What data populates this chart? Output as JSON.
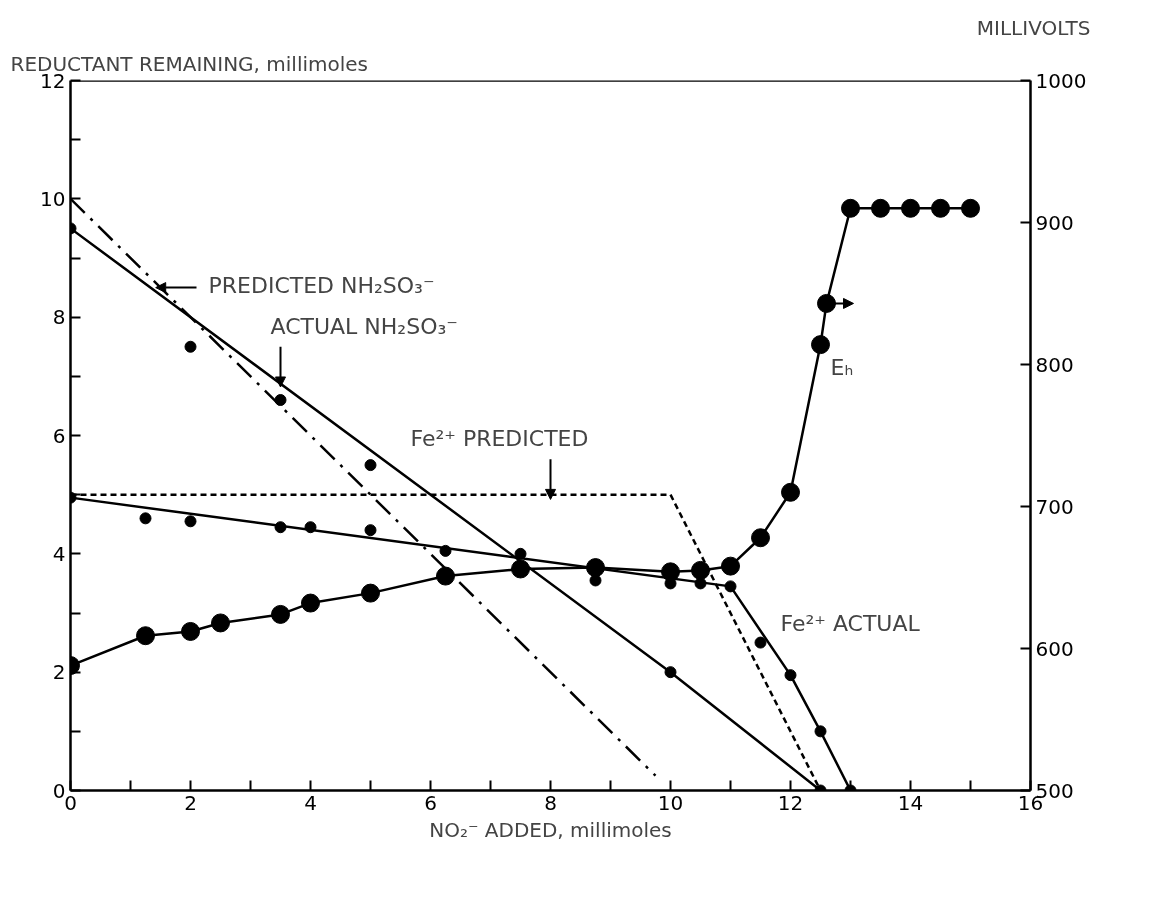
{
  "chart_data": {
    "type": "line",
    "xlabel": "NO₂⁻ ADDED, millimoles",
    "ylabel": "REDUCTANT REMAINING, millimoles",
    "y2label": "MILLIVOLTS",
    "xlim": [
      0,
      16
    ],
    "xticks": [
      0,
      {
        "value": 1,
        "label": null
      },
      2,
      {
        "value": 3,
        "label": null
      },
      4,
      {
        "value": 5,
        "label": null
      },
      6,
      {
        "value": 7,
        "label": null
      },
      8,
      {
        "value": 9,
        "label": null
      },
      10,
      {
        "value": 11,
        "label": null
      },
      12,
      {
        "value": 13,
        "label": null
      },
      14,
      {
        "value": 15,
        "label": null
      },
      16
    ],
    "ylim": [
      0,
      12
    ],
    "yticks": [
      0,
      {
        "value": 1,
        "label": null
      },
      2,
      {
        "value": 3,
        "label": null
      },
      4,
      {
        "value": 5,
        "label": null
      },
      6,
      {
        "value": 7,
        "label": null
      },
      8,
      {
        "value": 9,
        "label": null
      },
      10,
      {
        "value": 11,
        "label": null
      },
      12
    ],
    "y2lim": [
      500,
      1000
    ],
    "y2ticks": [
      500,
      600,
      700,
      800,
      900,
      1000
    ],
    "grid": false,
    "series": [
      {
        "line_style": "dashed",
        "color": "#000000",
        "x": [
          0,
          9.75
        ],
        "values": [
          10,
          0.25
        ]
      },
      {
        "type": "scatter",
        "marker": "circle",
        "color": "#000000",
        "x": [
          0,
          2,
          3.5,
          5,
          7.5,
          10,
          12.5
        ],
        "values": [
          9.5,
          7.5,
          6.6,
          5.5,
          4.0,
          2.0,
          0
        ]
      },
      {
        "line_style": "solid",
        "color": "#000000",
        "x": [
          0,
          10,
          12.5
        ],
        "values": [
          9.5,
          2.0,
          0
        ]
      },
      {
        "line_style": "dotted",
        "color": "#000000",
        "x": [
          0,
          10,
          12.5
        ],
        "values": [
          5,
          5,
          0
        ]
      },
      {
        "type": "scatter",
        "marker": "circle",
        "color": "#000000",
        "x": [
          0,
          1.25,
          2,
          3.5,
          4,
          5,
          6.25,
          8.75,
          10,
          10.5,
          11,
          11.5,
          12,
          12.5,
          13
        ],
        "values": [
          4.95,
          4.6,
          4.55,
          4.45,
          4.45,
          4.4,
          4.05,
          3.55,
          3.5,
          3.5,
          3.45,
          2.5,
          1.95,
          1.0,
          0
        ]
      },
      {
        "name": "Fe²⁺ ACTUAL",
        "line_style": "solid",
        "color": "#000000",
        "x": [
          0,
          11,
          12,
          12.5,
          13
        ],
        "values": [
          4.95,
          3.45,
          1.95,
          1.0,
          0
        ]
      },
      {
        "name": "Eₕ",
        "axis": "y2",
        "marker": "circle",
        "line_style": "solid",
        "color": "#000000",
        "x": [
          0,
          1.25,
          2,
          2.5,
          3.5,
          4,
          5,
          6.25,
          7.5,
          8.75,
          10,
          10.5,
          11,
          11.5,
          12,
          12.5,
          12.6,
          13,
          13.5,
          14,
          14.5,
          15
        ],
        "values": [
          588,
          609,
          612,
          618,
          624,
          632,
          639,
          651,
          656,
          657,
          654,
          655,
          658,
          678,
          710,
          814,
          843,
          910,
          910,
          910,
          910,
          910
        ]
      }
    ],
    "annotations": [
      {
        "text": "PREDICTED NH₂SO₃⁻",
        "x": 1.5,
        "y": 8.5
      },
      {
        "text": "ACTUAL NH₂SO₃⁻",
        "x": 3.5,
        "y": 6.9
      },
      {
        "text": "Fe²⁺ PREDICTED",
        "x": 8,
        "y": 5
      }
    ]
  }
}
